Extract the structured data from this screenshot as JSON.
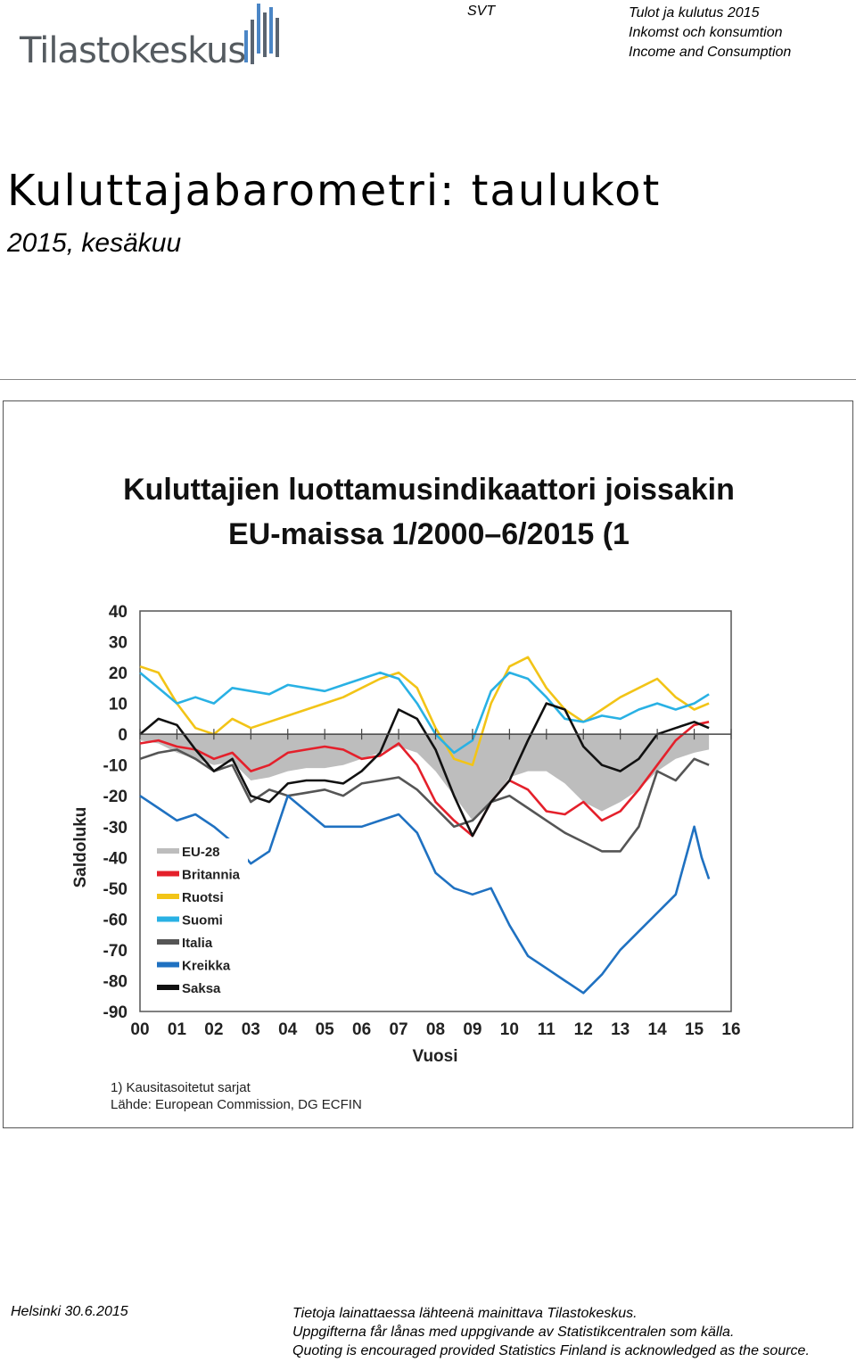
{
  "header": {
    "logo_text": "Tilastokeskus",
    "svt": "SVT",
    "series_lines": [
      "Tulot ja kulutus  2015",
      "Inkomst och konsumtion",
      "Income and Consumption"
    ]
  },
  "title": "Kuluttajabarometri: taulukot",
  "subtitle": "2015, kesäkuu",
  "chart_data": {
    "type": "line",
    "title": "Kuluttajien luottamusindikaattori joissakin",
    "title_line2": "EU-maissa 1/2000–6/2015 (1",
    "ylabel": "Saldoluku",
    "xlabel": "Vuosi",
    "ylim": [
      -90,
      40
    ],
    "xlim": [
      2000,
      2016
    ],
    "yticks": [
      40,
      30,
      20,
      10,
      0,
      -10,
      -20,
      -30,
      -40,
      -50,
      -60,
      -70,
      -80,
      -90
    ],
    "xticks": [
      "00",
      "01",
      "02",
      "03",
      "04",
      "05",
      "06",
      "07",
      "08",
      "09",
      "10",
      "11",
      "12",
      "13",
      "14",
      "15",
      "16"
    ],
    "legend_position": "lower-left",
    "note": "1) Kausitasoitetut sarjat",
    "source": "Lähde: European Commission, DG ECFIN",
    "series": [
      {
        "name": "EU-28",
        "color": "#bdbdbd",
        "style": "area",
        "x": [
          2000.0,
          2000.5,
          2001.0,
          2001.5,
          2002.0,
          2002.5,
          2003.0,
          2003.5,
          2004.0,
          2004.5,
          2005.0,
          2005.5,
          2006.0,
          2006.5,
          2007.0,
          2007.5,
          2008.0,
          2008.5,
          2009.0,
          2009.5,
          2010.0,
          2010.5,
          2011.0,
          2011.5,
          2012.0,
          2012.5,
          2013.0,
          2013.5,
          2014.0,
          2014.5,
          2015.0,
          2015.4
        ],
        "y": [
          -2,
          -3,
          -6,
          -8,
          -10,
          -9,
          -15,
          -14,
          -12,
          -11,
          -11,
          -10,
          -8,
          -6,
          -4,
          -6,
          -12,
          -20,
          -28,
          -22,
          -14,
          -12,
          -12,
          -16,
          -22,
          -25,
          -22,
          -18,
          -12,
          -8,
          -6,
          -5
        ]
      },
      {
        "name": "Britannia",
        "color": "#e4202b",
        "style": "line",
        "x": [
          2000.0,
          2000.5,
          2001.0,
          2001.5,
          2002.0,
          2002.5,
          2003.0,
          2003.5,
          2004.0,
          2004.5,
          2005.0,
          2005.5,
          2006.0,
          2006.5,
          2007.0,
          2007.5,
          2008.0,
          2008.5,
          2009.0,
          2009.5,
          2010.0,
          2010.5,
          2011.0,
          2011.5,
          2012.0,
          2012.5,
          2013.0,
          2013.5,
          2014.0,
          2014.5,
          2015.0,
          2015.4
        ],
        "y": [
          -3,
          -2,
          -4,
          -5,
          -8,
          -6,
          -12,
          -10,
          -6,
          -5,
          -4,
          -5,
          -8,
          -7,
          -3,
          -10,
          -22,
          -28,
          -33,
          -22,
          -15,
          -18,
          -25,
          -26,
          -22,
          -28,
          -25,
          -18,
          -10,
          -2,
          3,
          4
        ]
      },
      {
        "name": "Ruotsi",
        "color": "#f2c417",
        "style": "line",
        "x": [
          2000.0,
          2000.5,
          2001.0,
          2001.5,
          2002.0,
          2002.5,
          2003.0,
          2003.5,
          2004.0,
          2004.5,
          2005.0,
          2005.5,
          2006.0,
          2006.5,
          2007.0,
          2007.5,
          2008.0,
          2008.5,
          2009.0,
          2009.5,
          2010.0,
          2010.5,
          2011.0,
          2011.5,
          2012.0,
          2012.5,
          2013.0,
          2013.5,
          2014.0,
          2014.5,
          2015.0,
          2015.4
        ],
        "y": [
          22,
          20,
          10,
          2,
          0,
          5,
          2,
          4,
          6,
          8,
          10,
          12,
          15,
          18,
          20,
          15,
          2,
          -8,
          -10,
          10,
          22,
          25,
          15,
          8,
          4,
          8,
          12,
          15,
          18,
          12,
          8,
          10
        ]
      },
      {
        "name": "Suomi",
        "color": "#29b1e4",
        "style": "line",
        "x": [
          2000.0,
          2000.5,
          2001.0,
          2001.5,
          2002.0,
          2002.5,
          2003.0,
          2003.5,
          2004.0,
          2004.5,
          2005.0,
          2005.5,
          2006.0,
          2006.5,
          2007.0,
          2007.5,
          2008.0,
          2008.5,
          2009.0,
          2009.5,
          2010.0,
          2010.5,
          2011.0,
          2011.5,
          2012.0,
          2012.5,
          2013.0,
          2013.5,
          2014.0,
          2014.5,
          2015.0,
          2015.4
        ],
        "y": [
          20,
          15,
          10,
          12,
          10,
          15,
          14,
          13,
          16,
          15,
          14,
          16,
          18,
          20,
          18,
          10,
          0,
          -6,
          -2,
          14,
          20,
          18,
          12,
          5,
          4,
          6,
          5,
          8,
          10,
          8,
          10,
          13
        ]
      },
      {
        "name": "Italia",
        "color": "#555555",
        "style": "line",
        "x": [
          2000.0,
          2000.5,
          2001.0,
          2001.5,
          2002.0,
          2002.5,
          2003.0,
          2003.5,
          2004.0,
          2004.5,
          2005.0,
          2005.5,
          2006.0,
          2006.5,
          2007.0,
          2007.5,
          2008.0,
          2008.5,
          2009.0,
          2009.5,
          2010.0,
          2010.5,
          2011.0,
          2011.5,
          2012.0,
          2012.5,
          2013.0,
          2013.5,
          2014.0,
          2014.5,
          2015.0,
          2015.4
        ],
        "y": [
          -8,
          -6,
          -5,
          -8,
          -12,
          -10,
          -22,
          -18,
          -20,
          -19,
          -18,
          -20,
          -16,
          -15,
          -14,
          -18,
          -24,
          -30,
          -28,
          -22,
          -20,
          -24,
          -28,
          -32,
          -35,
          -38,
          -38,
          -30,
          -12,
          -15,
          -8,
          -10
        ]
      },
      {
        "name": "Kreikka",
        "color": "#1f71c1",
        "style": "line",
        "x": [
          2000.0,
          2000.5,
          2001.0,
          2001.5,
          2002.0,
          2002.5,
          2003.0,
          2003.5,
          2004.0,
          2004.5,
          2005.0,
          2005.5,
          2006.0,
          2006.5,
          2007.0,
          2007.5,
          2008.0,
          2008.5,
          2009.0,
          2009.5,
          2010.0,
          2010.5,
          2011.0,
          2011.5,
          2012.0,
          2012.5,
          2013.0,
          2013.5,
          2014.0,
          2014.5,
          2015.0,
          2015.2,
          2015.4
        ],
        "y": [
          -20,
          -24,
          -28,
          -26,
          -30,
          -35,
          -42,
          -38,
          -20,
          -25,
          -30,
          -30,
          -30,
          -28,
          -26,
          -32,
          -45,
          -50,
          -52,
          -50,
          -62,
          -72,
          -76,
          -80,
          -84,
          -78,
          -70,
          -64,
          -58,
          -52,
          -30,
          -40,
          -47
        ]
      },
      {
        "name": "Saksa",
        "color": "#111111",
        "style": "line",
        "x": [
          2000.0,
          2000.5,
          2001.0,
          2001.5,
          2002.0,
          2002.5,
          2003.0,
          2003.5,
          2004.0,
          2004.5,
          2005.0,
          2005.5,
          2006.0,
          2006.5,
          2007.0,
          2007.5,
          2008.0,
          2008.5,
          2009.0,
          2009.5,
          2010.0,
          2010.5,
          2011.0,
          2011.5,
          2012.0,
          2012.5,
          2013.0,
          2013.5,
          2014.0,
          2014.5,
          2015.0,
          2015.4
        ],
        "y": [
          0,
          5,
          3,
          -5,
          -12,
          -8,
          -20,
          -22,
          -16,
          -15,
          -15,
          -16,
          -12,
          -6,
          8,
          5,
          -5,
          -20,
          -33,
          -22,
          -15,
          -2,
          10,
          8,
          -4,
          -10,
          -12,
          -8,
          0,
          2,
          4,
          2
        ]
      }
    ]
  },
  "footer": {
    "place_date": "Helsinki 30.6.2015",
    "notice_fi": "Tietoja lainattaessa lähteenä mainittava Tilastokeskus.",
    "notice_sv": "Uppgifterna får lånas med uppgivande av Statistikcentralen som källa.",
    "notice_en": "Quoting is encouraged provided Statistics Finland is acknowledged as the source."
  }
}
